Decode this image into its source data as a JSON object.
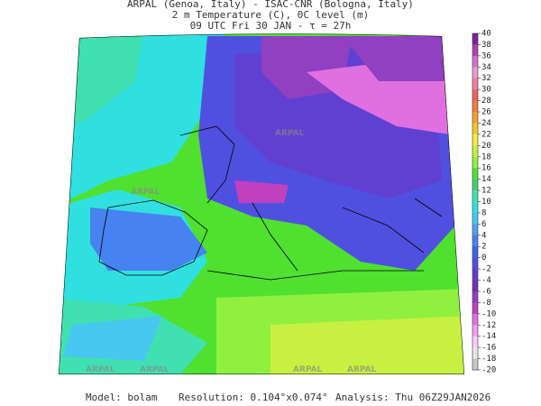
{
  "header": {
    "line1": "ARPAL (Genoa, Italy)  -  ISAC-CNR (Bologna, Italy)",
    "line2": "2 m Temperature (C), 0C level (m)",
    "line3": "09 UTC Fri 30 JAN  -  τ = 27h"
  },
  "colorbar": {
    "ticks": [
      40,
      38,
      36,
      34,
      32,
      30,
      28,
      26,
      24,
      22,
      20,
      18,
      16,
      14,
      12,
      10,
      8,
      6,
      4,
      2,
      0,
      -2,
      -4,
      -6,
      -8,
      -10,
      -12,
      -14,
      -16,
      -18,
      -20
    ],
    "colors": [
      "#8020a0",
      "#b040b0",
      "#d070d0",
      "#e0a0d0",
      "#f080a0",
      "#f06060",
      "#f08040",
      "#f0a030",
      "#f0c830",
      "#f0f040",
      "#c8f040",
      "#90f040",
      "#50e030",
      "#40d070",
      "#40e0b0",
      "#30e0e0",
      "#46c8f0",
      "#50a0f0",
      "#4682f0",
      "#3c64e6",
      "#5050e0",
      "#6040d0",
      "#7030b0",
      "#9040c0",
      "#c040c0",
      "#e070e0",
      "#f0a0f0",
      "#ffc8ff",
      "#e6e6e6",
      "#c8c8c8"
    ]
  },
  "watermark": "ARPAL",
  "footer": {
    "model": "Model: bolam",
    "resolution": "Resolution: 0.104°x0.074°",
    "analysis": "Analysis: Thu 06Z29JAN2026"
  }
}
